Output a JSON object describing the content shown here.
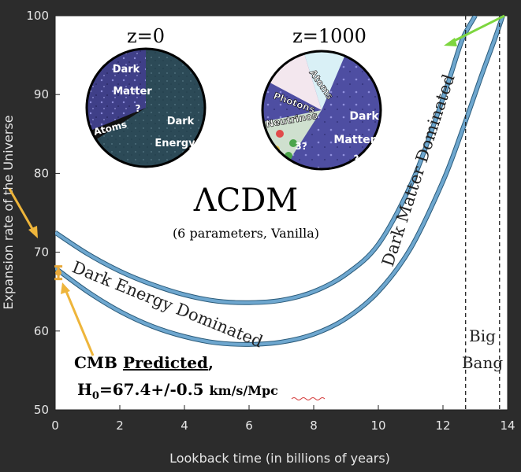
{
  "chart_data": {
    "type": "line",
    "xlabel": "Lookback time (in billions of years)",
    "ylabel": "Expansion rate of the Universe",
    "xlim": [
      0,
      14
    ],
    "ylim": [
      50,
      100
    ],
    "x_ticks": [
      "0",
      "2",
      "4",
      "6",
      "8",
      "10",
      "12",
      "14"
    ],
    "y_ticks": [
      "50",
      "60",
      "70",
      "80",
      "90",
      "100"
    ],
    "grid": false,
    "series": [
      {
        "x": [
          0,
          1,
          2,
          3,
          4,
          5,
          6,
          7,
          8,
          9,
          10,
          11,
          11.7,
          12.2,
          12.6,
          13.0
        ],
        "y": [
          72.5,
          69.8,
          67.6,
          65.9,
          64.6,
          63.8,
          63.6,
          63.9,
          65.0,
          67.2,
          71.0,
          78.5,
          86.0,
          92.0,
          97.0,
          100
        ]
      },
      {
        "x": [
          0,
          1,
          2,
          3,
          4,
          5,
          6,
          7,
          8,
          9,
          10,
          11,
          12,
          12.6,
          13.2,
          13.6,
          13.85
        ],
        "y": [
          68.0,
          65.0,
          62.5,
          60.6,
          59.3,
          58.5,
          58.3,
          58.6,
          59.6,
          61.6,
          65.0,
          70.5,
          79.0,
          85.5,
          92.5,
          97.0,
          100
        ]
      }
    ],
    "data_points": [
      {
        "x": 0.1,
        "y": 67.4,
        "error": 0.5,
        "color": "#e9a93a"
      }
    ],
    "vertical_lines": [
      12.7,
      13.75
    ],
    "annotations": {
      "band_lower": "Dark Energy Dominated",
      "band_upper": "Dark Matter Dominated",
      "model": "ΛCDM",
      "model_sub": "(6 parameters, Vanilla)",
      "big_bang_1": "Big",
      "big_bang_2": "Bang",
      "cmb_prefix": "CMB ",
      "cmb_predicted": "Predicted",
      "cmb_suffix": ",",
      "h0_base": "H",
      "h0_sub": "0",
      "h0_value": "=67.4+/-0.5 ",
      "h0_units_a": "km/s/",
      "h0_units_b": "Mpc"
    },
    "pies": [
      {
        "title": "z=0",
        "labels": {
          "dm1": "Dark",
          "dm2": "Matter",
          "dm3": "?",
          "atoms": "Atoms",
          "de1": "Dark",
          "de2": "Energy",
          "de3": "?"
        }
      },
      {
        "title": "z=1000",
        "labels": {
          "atoms": "Atoms",
          "photons": "Photons",
          "neutrinos": "Neutrinos",
          "q3": "3?",
          "dm1": "Dark",
          "dm2": "Matter",
          "dm3": "?"
        }
      }
    ],
    "colors": {
      "band": "#6ea7cf",
      "arrow_yellow": "#eeb53b",
      "arrow_green": "#7dd63f",
      "background": "#2c2c2c",
      "plot_bg": "#ffffff",
      "dark_energy_fill": "#2d4c5a",
      "dark_matter_fill": "#4a4a96"
    }
  }
}
